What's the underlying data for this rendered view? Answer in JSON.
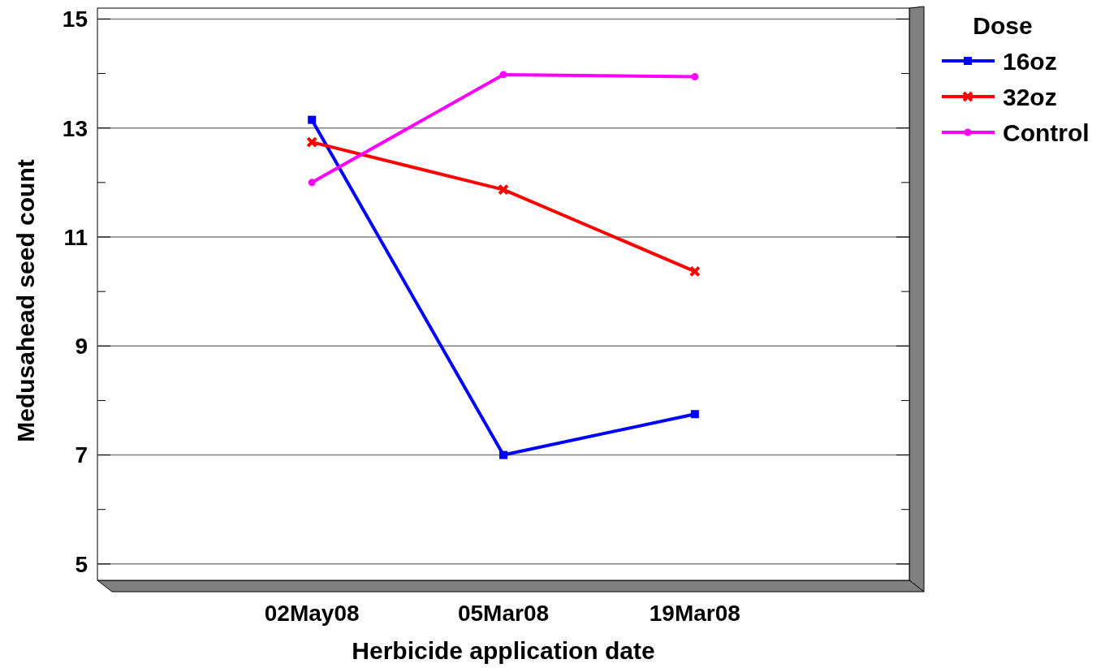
{
  "chart_data": {
    "type": "line",
    "xlabel": "Herbicide application date",
    "ylabel": "Medusahead seed count",
    "legend_title": "Dose",
    "categories": [
      "02May08",
      "05Mar08",
      "19Mar08"
    ],
    "series": [
      {
        "name": "16oz",
        "color": "#0000ff",
        "marker": "square",
        "values": [
          13.15,
          7.0,
          7.75
        ]
      },
      {
        "name": "32oz",
        "color": "#ff0000",
        "marker": "cross",
        "values": [
          12.74,
          11.87,
          10.37
        ]
      },
      {
        "name": "Control",
        "color": "#ff00ff",
        "marker": "circle",
        "values": [
          12.0,
          13.98,
          13.94
        ]
      }
    ],
    "ylim": [
      4.7,
      15.2
    ],
    "yticks": [
      5,
      {
        "value": 6,
        "label": null
      },
      7,
      {
        "value": 8,
        "label": null
      },
      9,
      {
        "value": 10,
        "label": null
      },
      11,
      {
        "value": 12,
        "label": null
      },
      13,
      {
        "value": 14,
        "label": null
      },
      15
    ],
    "grid": "y",
    "legend": "top right"
  }
}
